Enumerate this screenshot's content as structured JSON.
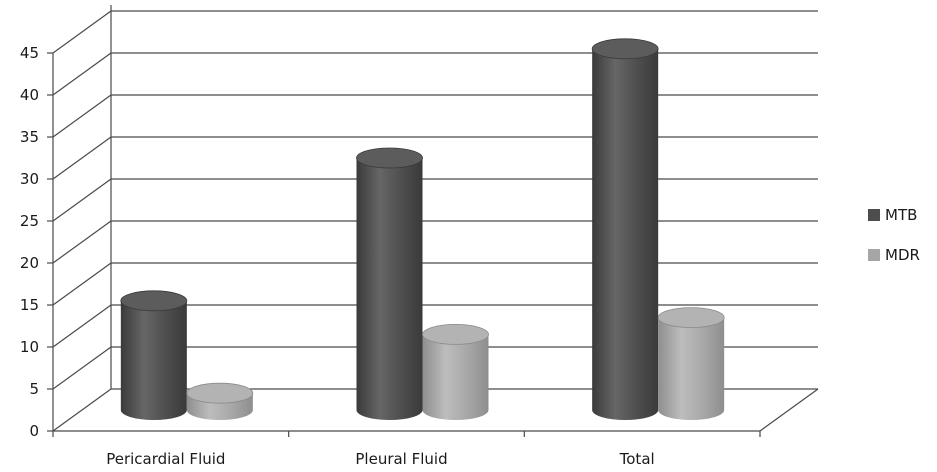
{
  "chart_data": {
    "type": "bar",
    "title": "",
    "xlabel": "",
    "ylabel": "",
    "categories": [
      "Pericardial Fluid",
      "Pleural Fluid",
      "Total"
    ],
    "series": [
      {
        "name": "MTB",
        "values": [
          13,
          30,
          43
        ],
        "color": "#4d4d4d"
      },
      {
        "name": "MDR",
        "values": [
          2,
          9,
          11
        ],
        "color": "#a6a6a6"
      }
    ],
    "ylim": [
      0,
      45
    ],
    "yticks": [
      0,
      5,
      10,
      15,
      20,
      25,
      30,
      35,
      40,
      45
    ],
    "grid": true,
    "legend": "right",
    "style": "3d-cylinder"
  }
}
